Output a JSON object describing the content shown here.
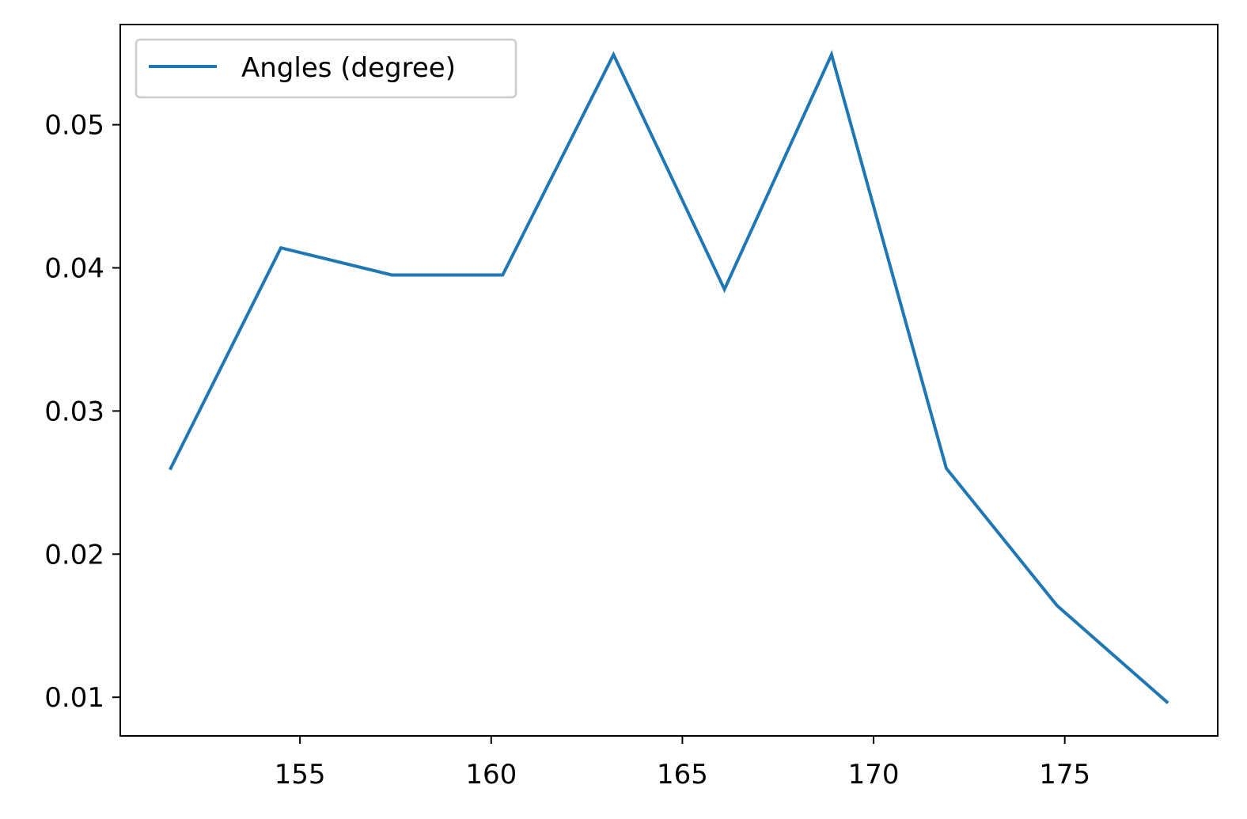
{
  "chart_data": {
    "type": "line",
    "title": "",
    "xlabel": "",
    "ylabel": "",
    "xlim": [
      150.3,
      179.0
    ],
    "ylim": [
      0.0073,
      0.057
    ],
    "xticks": [
      155,
      160,
      165,
      170,
      175
    ],
    "yticks": [
      0.01,
      0.02,
      0.03,
      0.04,
      0.05
    ],
    "xtick_labels": [
      "155",
      "160",
      "165",
      "170",
      "175"
    ],
    "ytick_labels": [
      "0.01",
      "0.02",
      "0.03",
      "0.04",
      "0.05"
    ],
    "grid": false,
    "legend_position": "upper-left",
    "series": [
      {
        "name": "Angles (degree)",
        "color": "#1f77b4",
        "x": [
          151.6,
          154.5,
          157.4,
          160.3,
          163.2,
          166.1,
          168.9,
          171.9,
          174.8,
          177.7
        ],
        "y": [
          0.0259,
          0.0414,
          0.0395,
          0.0395,
          0.0549,
          0.0385,
          0.0549,
          0.026,
          0.0164,
          0.0096
        ]
      }
    ]
  }
}
